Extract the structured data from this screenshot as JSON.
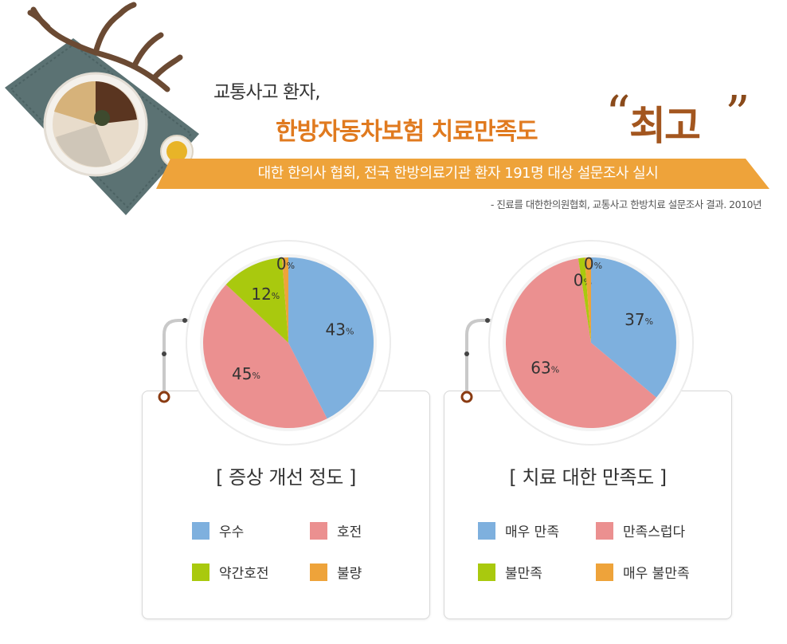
{
  "header": {
    "line1": "교통사고 환자,",
    "line2": "한방자동차보험 치료만족도",
    "quote_open": "“",
    "emphasis": "최고",
    "quote_close": "”",
    "banner": "대한 한의사 협회, 전국 한방의료기관 환자 191명 대상 설문조사 실시",
    "source": "- 진료를 대한한의원협회, 교통사고 한방치료 설문조사 결과. 2010년"
  },
  "colors": {
    "blue": "#7eb0de",
    "pink": "#eb9090",
    "green": "#a9c90e",
    "orange": "#eea33a",
    "banner": "#eea33a",
    "title_orange": "#e07a1f"
  },
  "chart_data": [
    {
      "type": "pie",
      "title": "[ 증상 개선 정도 ]",
      "categories": [
        "우수",
        "호전",
        "약간호전",
        "불량"
      ],
      "values": [
        43,
        45,
        12,
        0
      ],
      "labels": [
        "43",
        "45",
        "12",
        "0"
      ],
      "unit": "%",
      "colors": [
        "#7eb0de",
        "#eb9090",
        "#a9c90e",
        "#eea33a"
      ],
      "legend": "bottom"
    },
    {
      "type": "pie",
      "title": "[ 치료 대한 만족도 ]",
      "categories": [
        "매우 만족",
        "만족스럽다",
        "불만족",
        "매우 불만족"
      ],
      "values": [
        37,
        63,
        0,
        0
      ],
      "labels": [
        "37",
        "63",
        "0",
        "0"
      ],
      "unit": "%",
      "colors": [
        "#7eb0de",
        "#eb9090",
        "#a9c90e",
        "#eea33a"
      ],
      "legend": "bottom"
    }
  ]
}
